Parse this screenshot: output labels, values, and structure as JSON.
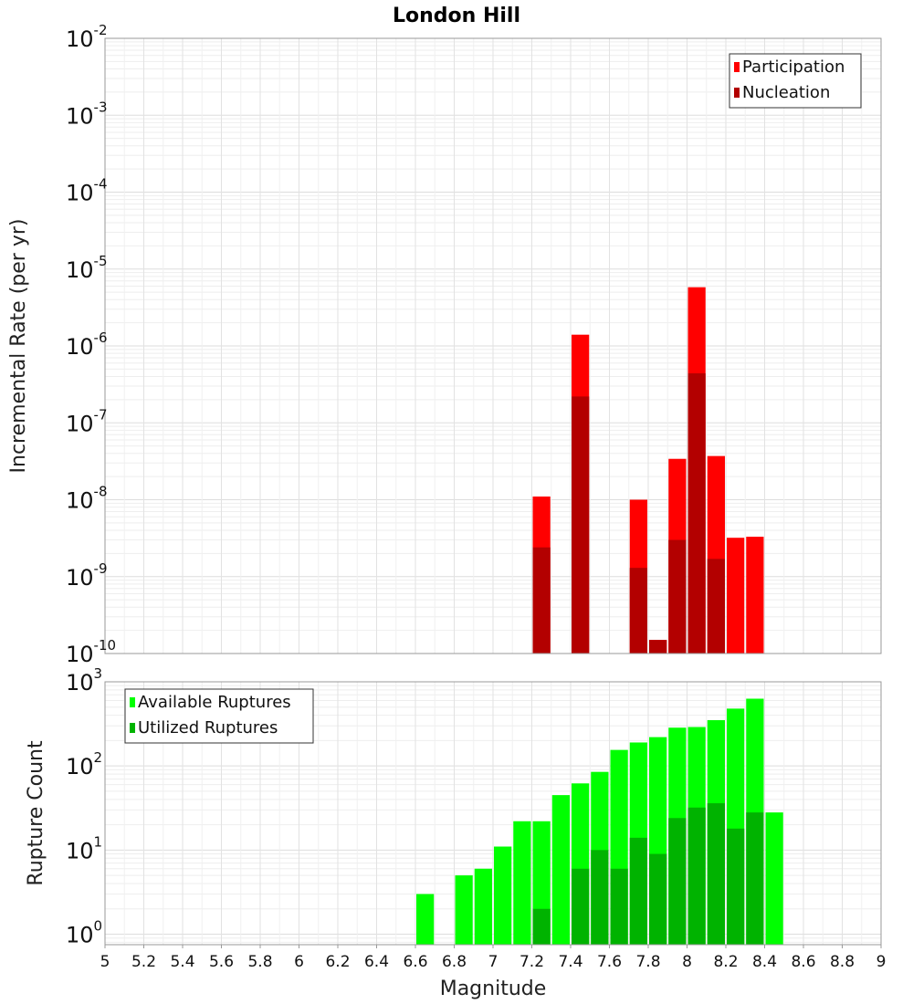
{
  "chart_data": [
    {
      "type": "bar",
      "title": "London Hill",
      "xlabel": "",
      "ylabel": "Incremental Rate (per yr)",
      "yscale": "log",
      "xlim": [
        5,
        9
      ],
      "ylim": [
        1e-10,
        0.01
      ],
      "yticks": [
        {
          "base": "10",
          "exp": "-10"
        },
        {
          "base": "10",
          "exp": "-9"
        },
        {
          "base": "10",
          "exp": "-8"
        },
        {
          "base": "10",
          "exp": "-7"
        },
        {
          "base": "10",
          "exp": "-6"
        },
        {
          "base": "10",
          "exp": "-5"
        },
        {
          "base": "10",
          "exp": "-4"
        },
        {
          "base": "10",
          "exp": "-3"
        },
        {
          "base": "10",
          "exp": "-2"
        }
      ],
      "bar_width": 0.1,
      "grid": true,
      "legend_position": "top-right",
      "series": [
        {
          "name": "Participation",
          "color": "#ff0000",
          "x": [
            7.25,
            7.45,
            7.75,
            7.85,
            7.95,
            8.05,
            8.15,
            8.25,
            8.35
          ],
          "values": [
            1.1e-08,
            1.4e-06,
            1e-08,
            1.5e-10,
            3.4e-08,
            5.8e-06,
            3.7e-08,
            3.2e-09,
            3.3e-09
          ]
        },
        {
          "name": "Nucleation",
          "color": "#b30000",
          "x": [
            7.25,
            7.45,
            7.75,
            7.85,
            7.95,
            8.05,
            8.15
          ],
          "values": [
            2.4e-09,
            2.2e-07,
            1.3e-09,
            1.5e-10,
            3e-09,
            4.4e-07,
            1.7e-09
          ]
        }
      ]
    },
    {
      "type": "bar",
      "title": "",
      "xlabel": "Magnitude",
      "ylabel": "Rupture Count",
      "yscale": "log",
      "xlim": [
        5,
        9
      ],
      "ylim": [
        0.75,
        1000
      ],
      "xticks": [
        "5",
        "5.2",
        "5.4",
        "5.6",
        "5.8",
        "6",
        "6.2",
        "6.4",
        "6.6",
        "6.8",
        "7",
        "7.2",
        "7.4",
        "7.6",
        "7.8",
        "8",
        "8.2",
        "8.4",
        "8.6",
        "8.8",
        "9"
      ],
      "yticks": [
        {
          "base": "10",
          "exp": "0"
        },
        {
          "base": "10",
          "exp": "1"
        },
        {
          "base": "10",
          "exp": "2"
        },
        {
          "base": "10",
          "exp": "3"
        }
      ],
      "bar_width": 0.1,
      "grid": true,
      "legend_position": "top-left",
      "series": [
        {
          "name": "Available Ruptures",
          "color": "#00ff00",
          "x": [
            6.65,
            6.85,
            6.95,
            7.05,
            7.15,
            7.25,
            7.35,
            7.45,
            7.55,
            7.65,
            7.75,
            7.85,
            7.95,
            8.05,
            8.15,
            8.25,
            8.35,
            8.45
          ],
          "values": [
            3,
            5,
            6,
            11,
            22,
            22,
            45,
            62,
            85,
            155,
            190,
            220,
            285,
            290,
            350,
            480,
            630,
            28
          ]
        },
        {
          "name": "Utilized Ruptures",
          "color": "#00b300",
          "x": [
            7.25,
            7.45,
            7.55,
            7.65,
            7.75,
            7.85,
            7.95,
            8.05,
            8.15,
            8.25,
            8.35
          ],
          "values": [
            2,
            6,
            10,
            6,
            14,
            9,
            24,
            32,
            36,
            18,
            28
          ]
        }
      ]
    }
  ]
}
